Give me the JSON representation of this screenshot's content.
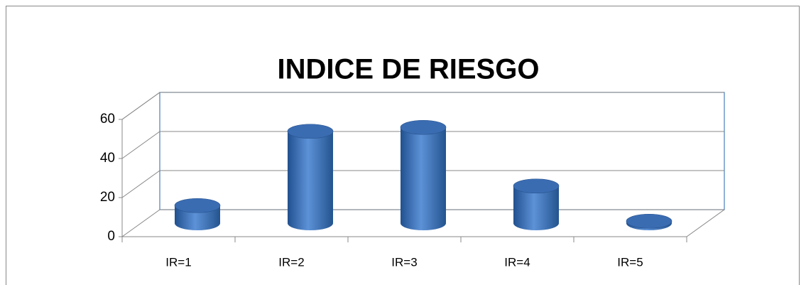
{
  "chart_data": {
    "type": "bar",
    "title": "INDICE DE RIESGO",
    "categories": [
      "IR=1",
      "IR=2",
      "IR=3",
      "IR=4",
      "IR=5"
    ],
    "values": [
      9,
      47,
      49,
      19,
      1
    ],
    "color": "#3f72b8",
    "ylim": [
      0,
      60
    ],
    "yticks": [
      0,
      20,
      40,
      60
    ],
    "grid": true
  }
}
